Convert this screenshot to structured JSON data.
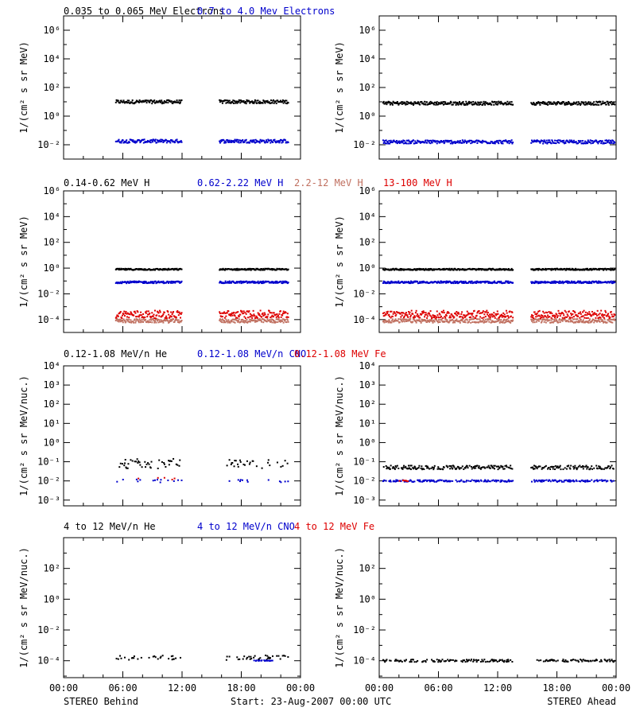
{
  "colors": {
    "black": "#000000",
    "blue": "#0000cc",
    "salmon": "#c07060",
    "red": "#dd0000"
  },
  "footer": {
    "left": "STEREO Behind",
    "center": "Start: 23-Aug-2007 00:00 UTC",
    "right": "STEREO Ahead"
  },
  "x_ticks": [
    "00:00",
    "06:00",
    "12:00",
    "18:00",
    "00:00"
  ],
  "chart_data": [
    {
      "type": "scatter",
      "row": 0,
      "side": "behind",
      "ylabel": "1/(cm² s sr MeV)",
      "ylim_log10": [
        -3,
        7
      ],
      "y_ticks": [
        "10⁻²",
        "10⁰",
        "10²",
        "10⁴",
        "10⁶"
      ],
      "y_tick_exps": [
        -2,
        0,
        2,
        4,
        6
      ],
      "legend": [
        {
          "text": "0.035 to 0.065 MeV Electrons",
          "color": "black"
        },
        {
          "text": "0.7 to 4.0 Mev Electrons",
          "color": "blue"
        }
      ],
      "series": [
        {
          "color": "black",
          "log10_level": 1.0,
          "spread": 0.12,
          "segments": [
            [
              5.3,
              12.0
            ],
            [
              15.8,
              22.8
            ]
          ]
        },
        {
          "color": "blue",
          "log10_level": -1.75,
          "spread": 0.12,
          "segments": [
            [
              5.3,
              12.0
            ],
            [
              15.8,
              22.8
            ]
          ]
        }
      ]
    },
    {
      "type": "scatter",
      "row": 0,
      "side": "ahead",
      "ylabel": "1/(cm² s sr MeV)",
      "ylim_log10": [
        -3,
        7
      ],
      "y_ticks": [
        "10⁻²",
        "10⁰",
        "10²",
        "10⁴",
        "10⁶"
      ],
      "y_tick_exps": [
        -2,
        0,
        2,
        4,
        6
      ],
      "series": [
        {
          "color": "black",
          "log10_level": 0.9,
          "spread": 0.12,
          "segments": [
            [
              0.4,
              13.6
            ],
            [
              15.4,
              24.0
            ]
          ]
        },
        {
          "color": "blue",
          "log10_level": -1.8,
          "spread": 0.12,
          "segments": [
            [
              0.4,
              13.6
            ],
            [
              15.4,
              24.0
            ]
          ]
        }
      ]
    },
    {
      "type": "scatter",
      "row": 1,
      "side": "behind",
      "ylabel": "1/(cm² s sr MeV)",
      "ylim_log10": [
        -5,
        6
      ],
      "y_ticks": [
        "10⁻⁴",
        "10⁻²",
        "10⁰",
        "10²",
        "10⁴",
        "10⁶"
      ],
      "y_tick_exps": [
        -4,
        -2,
        0,
        2,
        4,
        6
      ],
      "legend": [
        {
          "text": "0.14-0.62 MeV H",
          "color": "black"
        },
        {
          "text": "0.62-2.22 MeV H",
          "color": "blue"
        },
        {
          "text": "2.2-12 MeV H",
          "color": "salmon"
        },
        {
          "text": "13-100 MeV H",
          "color": "red"
        }
      ],
      "series": [
        {
          "color": "black",
          "log10_level": -0.1,
          "spread": 0.06,
          "segments": [
            [
              5.3,
              12.0
            ],
            [
              15.8,
              22.8
            ]
          ]
        },
        {
          "color": "blue",
          "log10_level": -1.1,
          "spread": 0.08,
          "segments": [
            [
              5.3,
              12.0
            ],
            [
              15.8,
              22.8
            ]
          ]
        },
        {
          "color": "salmon",
          "log10_level": -4.1,
          "spread": 0.15,
          "segments": [
            [
              5.3,
              12.0
            ],
            [
              15.8,
              22.8
            ]
          ]
        },
        {
          "color": "red",
          "log10_level": -3.6,
          "spread": 0.3,
          "segments": [
            [
              5.3,
              12.0
            ],
            [
              15.8,
              22.8
            ]
          ]
        }
      ]
    },
    {
      "type": "scatter",
      "row": 1,
      "side": "ahead",
      "ylabel": "1/(cm² s sr MeV)",
      "ylim_log10": [
        -5,
        6
      ],
      "y_ticks": [
        "10⁻⁴",
        "10⁻²",
        "10⁰",
        "10²",
        "10⁴",
        "10⁶"
      ],
      "y_tick_exps": [
        -4,
        -2,
        0,
        2,
        4,
        6
      ],
      "series": [
        {
          "color": "black",
          "log10_level": -0.1,
          "spread": 0.06,
          "segments": [
            [
              0.4,
              13.6
            ],
            [
              15.4,
              24.0
            ]
          ]
        },
        {
          "color": "blue",
          "log10_level": -1.1,
          "spread": 0.08,
          "segments": [
            [
              0.4,
              13.6
            ],
            [
              15.4,
              24.0
            ]
          ]
        },
        {
          "color": "salmon",
          "log10_level": -4.1,
          "spread": 0.15,
          "segments": [
            [
              0.4,
              13.6
            ],
            [
              15.4,
              24.0
            ]
          ]
        },
        {
          "color": "red",
          "log10_level": -3.6,
          "spread": 0.3,
          "segments": [
            [
              0.4,
              13.6
            ],
            [
              15.4,
              24.0
            ]
          ]
        }
      ]
    },
    {
      "type": "scatter",
      "row": 2,
      "side": "behind",
      "ylabel": "1/(cm² s sr MeV/nuc.)",
      "ylim_log10": [
        -3.3,
        4
      ],
      "y_ticks": [
        "10⁻³",
        "10⁻²",
        "10⁻¹",
        "10⁰",
        "10¹",
        "10²",
        "10³",
        "10⁴"
      ],
      "y_tick_exps": [
        -3,
        -2,
        -1,
        0,
        1,
        2,
        3,
        4
      ],
      "legend": [
        {
          "text": "0.12-1.08 MeV/n He",
          "color": "black"
        },
        {
          "text": "0.12-1.08 MeV/n CNO",
          "color": "blue"
        },
        {
          "text": "0.12-1.08 MeV Fe",
          "color": "red"
        }
      ],
      "series": [
        {
          "color": "black",
          "log10_level": -1.1,
          "spread": 0.25,
          "density": 0.35,
          "segments": [
            [
              5.3,
              12.0
            ],
            [
              16.5,
              22.8
            ]
          ]
        },
        {
          "color": "blue",
          "log10_level": -2.0,
          "spread": 0.08,
          "density": 0.15,
          "segments": [
            [
              5.3,
              12.0
            ],
            [
              16.5,
              22.8
            ]
          ]
        },
        {
          "color": "red",
          "log10_level": -1.9,
          "spread": 0.08,
          "density": 0.06,
          "segments": [
            [
              6.5,
              12.0
            ]
          ]
        }
      ]
    },
    {
      "type": "scatter",
      "row": 2,
      "side": "ahead",
      "ylabel": "1/(cm² s sr MeV/nuc.)",
      "ylim_log10": [
        -3.3,
        4
      ],
      "y_ticks": [
        "10⁻³",
        "10⁻²",
        "10⁻¹",
        "10⁰",
        "10¹",
        "10²",
        "10³",
        "10⁴"
      ],
      "y_tick_exps": [
        -3,
        -2,
        -1,
        0,
        1,
        2,
        3,
        4
      ],
      "series": [
        {
          "color": "black",
          "log10_level": -1.3,
          "spread": 0.1,
          "density": 0.7,
          "segments": [
            [
              0.4,
              13.6
            ],
            [
              15.4,
              24.0
            ]
          ]
        },
        {
          "color": "blue",
          "log10_level": -2.0,
          "spread": 0.05,
          "density": 0.6,
          "segments": [
            [
              0.4,
              13.6
            ],
            [
              15.4,
              24.0
            ]
          ]
        },
        {
          "color": "red",
          "log10_level": -2.0,
          "spread": 0.05,
          "density": 0.15,
          "segments": [
            [
              2.0,
              3.5
            ]
          ]
        }
      ]
    },
    {
      "type": "scatter",
      "row": 3,
      "side": "behind",
      "ylabel": "1/(cm² s sr MeV/nuc.)",
      "ylim_log10": [
        -5.1,
        4
      ],
      "y_ticks": [
        "10⁻⁴",
        "10⁻²",
        "10⁰",
        "10²"
      ],
      "y_tick_exps": [
        -4,
        -2,
        0,
        2
      ],
      "legend": [
        {
          "text": "4 to 12 MeV/n He",
          "color": "black"
        },
        {
          "text": "4 to 12 MeV/n CNO",
          "color": "blue"
        },
        {
          "text": "4 to 12 MeV Fe",
          "color": "red"
        }
      ],
      "series": [
        {
          "color": "black",
          "log10_level": -3.8,
          "spread": 0.15,
          "density": 0.25,
          "segments": [
            [
              5.3,
              12.0
            ],
            [
              16.5,
              22.8
            ]
          ]
        },
        {
          "color": "blue",
          "log10_level": -4.0,
          "spread": 0.03,
          "density": 0.5,
          "segments": [
            [
              19.0,
              21.5
            ]
          ]
        }
      ]
    },
    {
      "type": "scatter",
      "row": 3,
      "side": "ahead",
      "ylabel": "1/(cm² s sr MeV/nuc.)",
      "ylim_log10": [
        -5.1,
        4
      ],
      "y_ticks": [
        "10⁻⁴",
        "10⁻²",
        "10⁰",
        "10²"
      ],
      "y_tick_exps": [
        -4,
        -2,
        0,
        2
      ],
      "series": [
        {
          "color": "black",
          "log10_level": -4.0,
          "spread": 0.08,
          "density": 0.5,
          "segments": [
            [
              0.4,
              13.6
            ],
            [
              16.0,
              24.0
            ]
          ]
        }
      ]
    }
  ]
}
